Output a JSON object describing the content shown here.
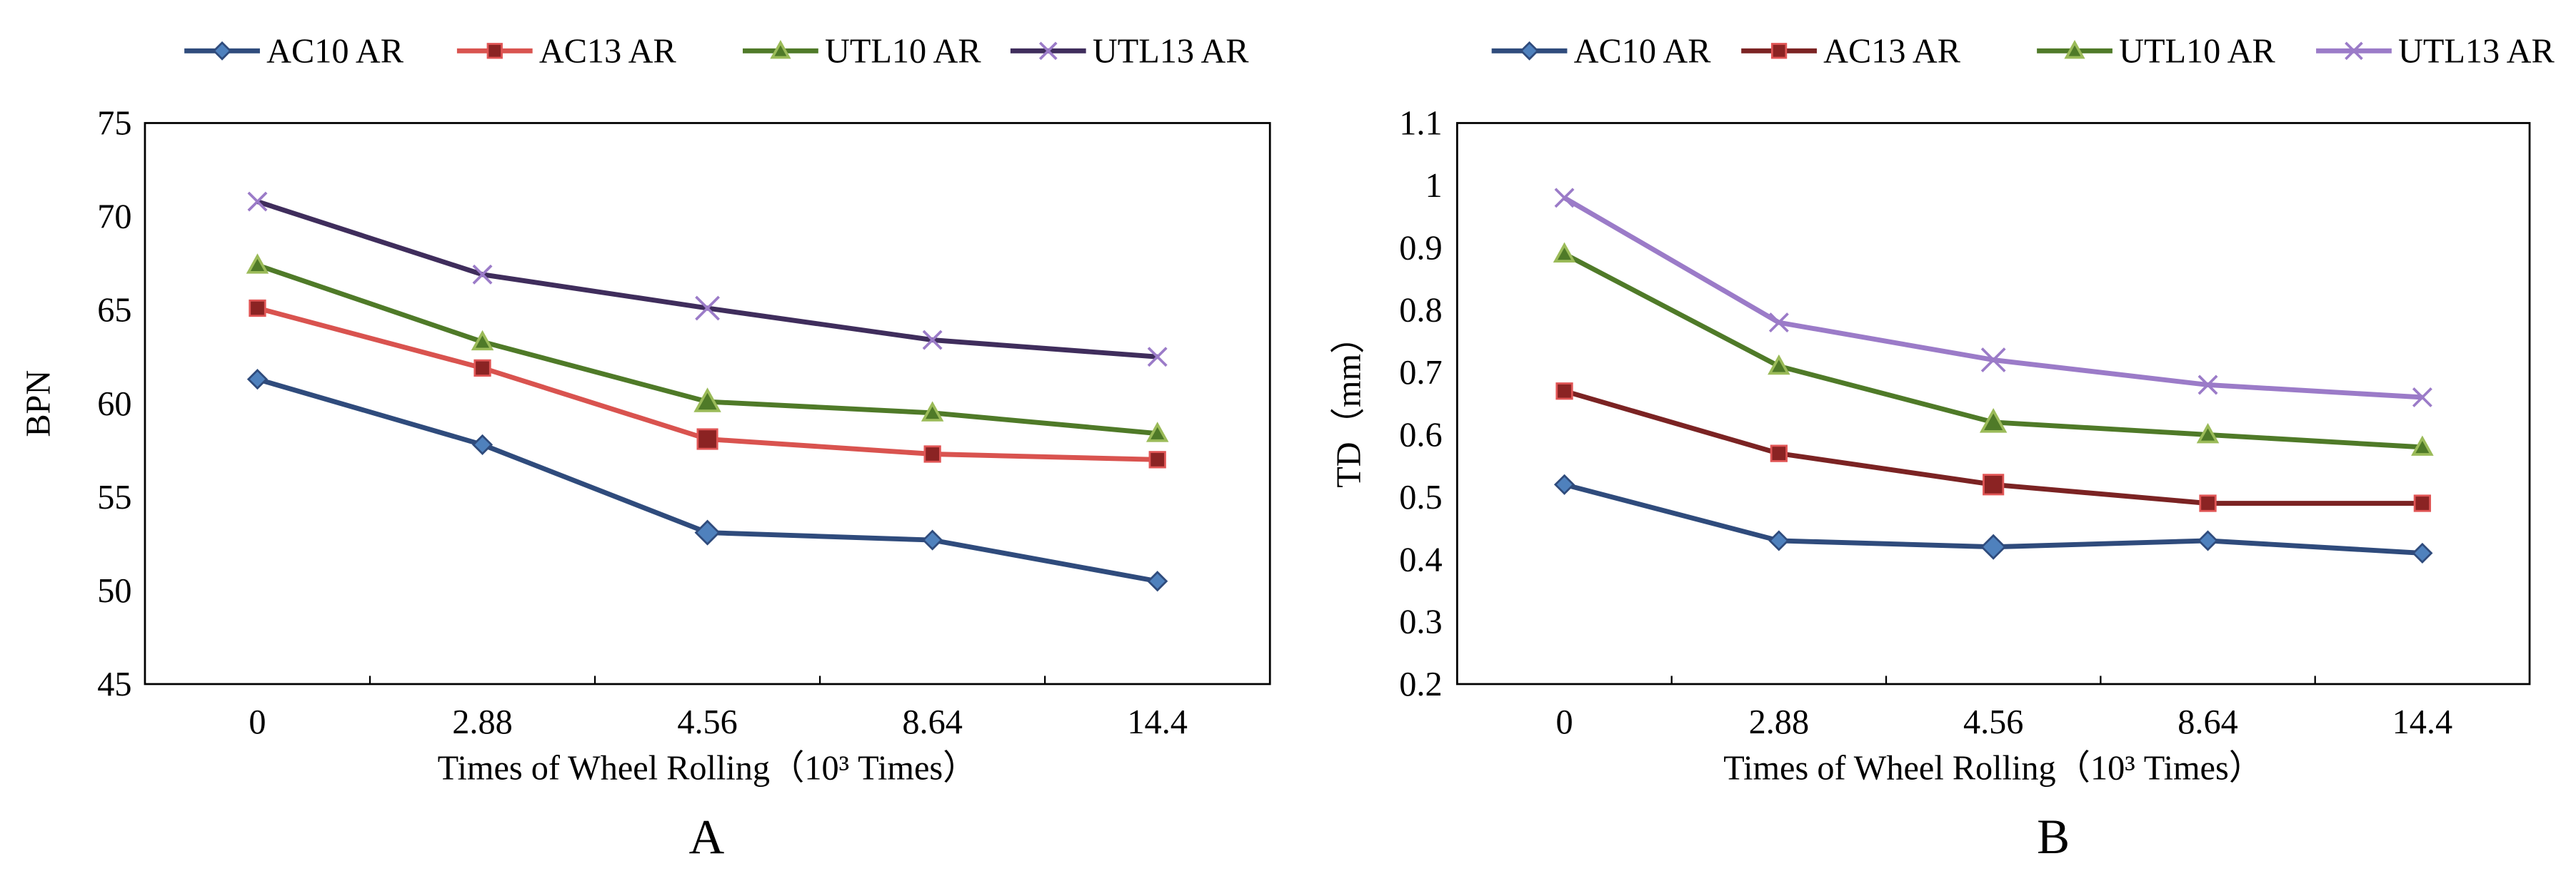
{
  "chart_data": [
    {
      "type": "line",
      "panel_label": "A",
      "xlabel": "Times of Wheel Rolling（10³ Times）",
      "ylabel": "BPN",
      "categories": [
        "0",
        "2.88",
        "4.56",
        "8.64",
        "14.4"
      ],
      "ylim": [
        45,
        75
      ],
      "yticks": [
        "45",
        "50",
        "55",
        "60",
        "65",
        "70",
        "75"
      ],
      "grid": false,
      "legend_position": "top",
      "series": [
        {
          "name": "AC10 AR",
          "marker": "diamond",
          "line_color": "#2F4B7C",
          "marker_color": "#4F81BD",
          "values": [
            61.3,
            57.8,
            53.1,
            52.7,
            50.5
          ]
        },
        {
          "name": "AC13 AR",
          "marker": "square",
          "line_color": "#D9534F",
          "marker_color": "#8B2323",
          "values": [
            65.1,
            61.9,
            58.1,
            57.3,
            57.0
          ]
        },
        {
          "name": "UTL10 AR",
          "marker": "triangle",
          "line_color": "#4F7A28",
          "marker_color": "#9BBB59",
          "values": [
            67.4,
            63.3,
            60.1,
            59.5,
            58.4
          ]
        },
        {
          "name": "UTL13 AR",
          "marker": "x",
          "line_color": "#3F2D5C",
          "marker_color": "#9B7BC8",
          "values": [
            70.8,
            66.9,
            65.1,
            63.4,
            62.5
          ]
        }
      ]
    },
    {
      "type": "line",
      "panel_label": "B",
      "xlabel": "Times of Wheel Rolling（10³ Times）",
      "ylabel": "TD（mm）",
      "categories": [
        "0",
        "2.88",
        "4.56",
        "8.64",
        "14.4"
      ],
      "ylim": [
        0.2,
        1.1
      ],
      "yticks": [
        "0.2",
        "0.3",
        "0.4",
        "0.5",
        "0.6",
        "0.7",
        "0.8",
        "0.9",
        "1",
        "1.1"
      ],
      "grid": false,
      "legend_position": "top",
      "series": [
        {
          "name": "AC10 AR",
          "marker": "diamond",
          "line_color": "#2F4B7C",
          "marker_color": "#4F81BD",
          "values": [
            0.52,
            0.43,
            0.42,
            0.43,
            0.41
          ]
        },
        {
          "name": "AC13 AR",
          "marker": "square",
          "line_color": "#7B2323",
          "marker_color": "#8B2323",
          "values": [
            0.67,
            0.57,
            0.52,
            0.49,
            0.49
          ]
        },
        {
          "name": "UTL10 AR",
          "marker": "triangle",
          "line_color": "#4F7A28",
          "marker_color": "#9BBB59",
          "values": [
            0.89,
            0.71,
            0.62,
            0.6,
            0.58
          ]
        },
        {
          "name": "UTL13 AR",
          "marker": "x",
          "line_color": "#9B7BC8",
          "marker_color": "#9B7BC8",
          "values": [
            0.98,
            0.78,
            0.72,
            0.68,
            0.66
          ]
        }
      ]
    }
  ]
}
